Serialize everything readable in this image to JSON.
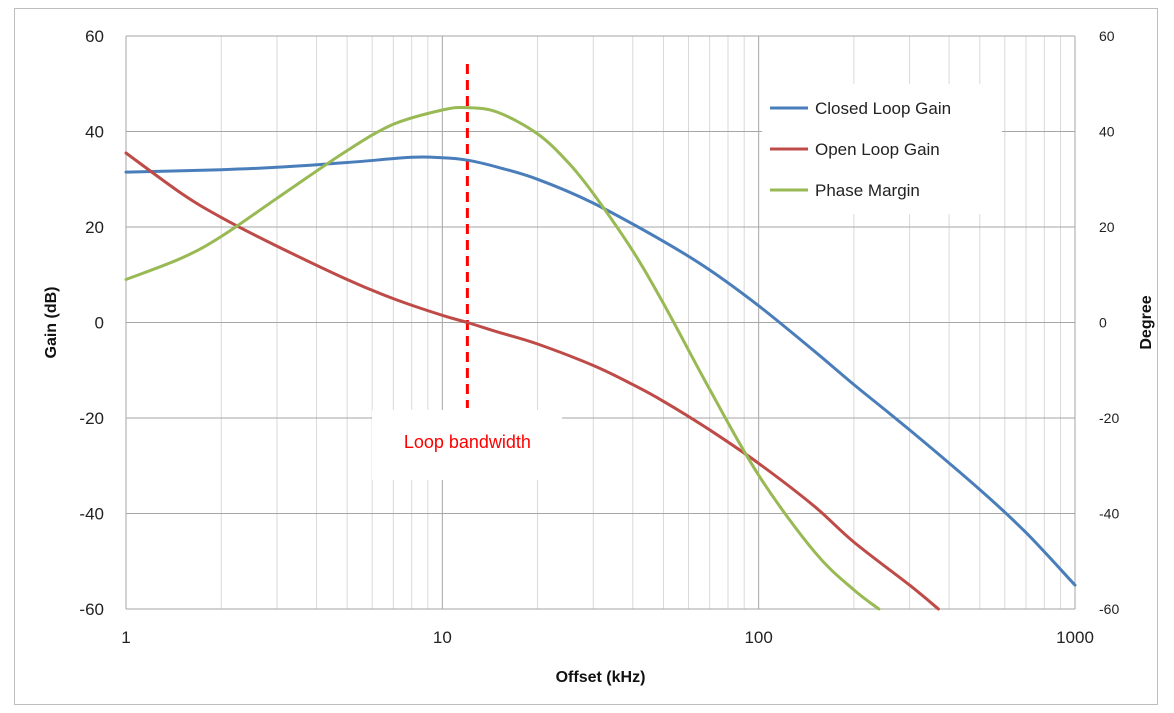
{
  "chart_data": {
    "type": "line",
    "title": "",
    "xlabel": "Offset (kHz)",
    "ylabel": "Gain (dB)",
    "y2label": "Degree",
    "x_scale": "log",
    "xlim": [
      1,
      1000
    ],
    "ylim": [
      -60,
      60
    ],
    "y2lim": [
      -60,
      60
    ],
    "x_ticks": [
      "1",
      "10",
      "100",
      "1000"
    ],
    "y_ticks": [
      "60",
      "40",
      "20",
      "0",
      "-20",
      "-40",
      "-60"
    ],
    "y2_ticks": [
      "60",
      "40",
      "20",
      "0",
      "-20",
      "-40",
      "-60"
    ],
    "grid": true,
    "legend_position": "top-right",
    "series": [
      {
        "name": "Closed Loop Gain",
        "color": "#4a7ebb",
        "axis": "left",
        "x": [
          1,
          2,
          3,
          5,
          8,
          10,
          12,
          15,
          20,
          30,
          50,
          70,
          100,
          150,
          200,
          300,
          500,
          700,
          1000
        ],
        "y": [
          31.5,
          32,
          32.5,
          33.5,
          34.6,
          34.5,
          34,
          32.5,
          30,
          25,
          17,
          11,
          3.5,
          -6,
          -13,
          -22.5,
          -35,
          -44,
          -55
        ]
      },
      {
        "name": "Open Loop Gain",
        "color": "#be4b48",
        "axis": "left",
        "x": [
          1,
          1.5,
          2,
          3,
          5,
          7,
          10,
          12,
          15,
          20,
          30,
          40,
          50,
          70,
          100,
          150,
          200,
          300,
          370
        ],
        "y": [
          35.5,
          27,
          22,
          16,
          9,
          5,
          1.5,
          0,
          -2,
          -4.5,
          -9,
          -13,
          -16.5,
          -22.5,
          -29.5,
          -38.5,
          -46,
          -55,
          -60
        ]
      },
      {
        "name": "Phase Margin",
        "color": "#98b954",
        "axis": "right",
        "x": [
          1,
          1.5,
          2,
          3,
          5,
          7,
          10,
          12,
          15,
          20,
          25,
          30,
          40,
          50,
          70,
          100,
          150,
          200,
          240
        ],
        "y": [
          9,
          13.5,
          18,
          26,
          36,
          41.5,
          44.5,
          45,
          44,
          39.5,
          33.5,
          27,
          15,
          4,
          -14,
          -32,
          -48,
          -56,
          -60
        ]
      }
    ],
    "annotations": [
      {
        "text": "Loop bandwidth",
        "x": 12,
        "color": "#ff0000",
        "style": "dashed-vertical-line"
      }
    ]
  }
}
